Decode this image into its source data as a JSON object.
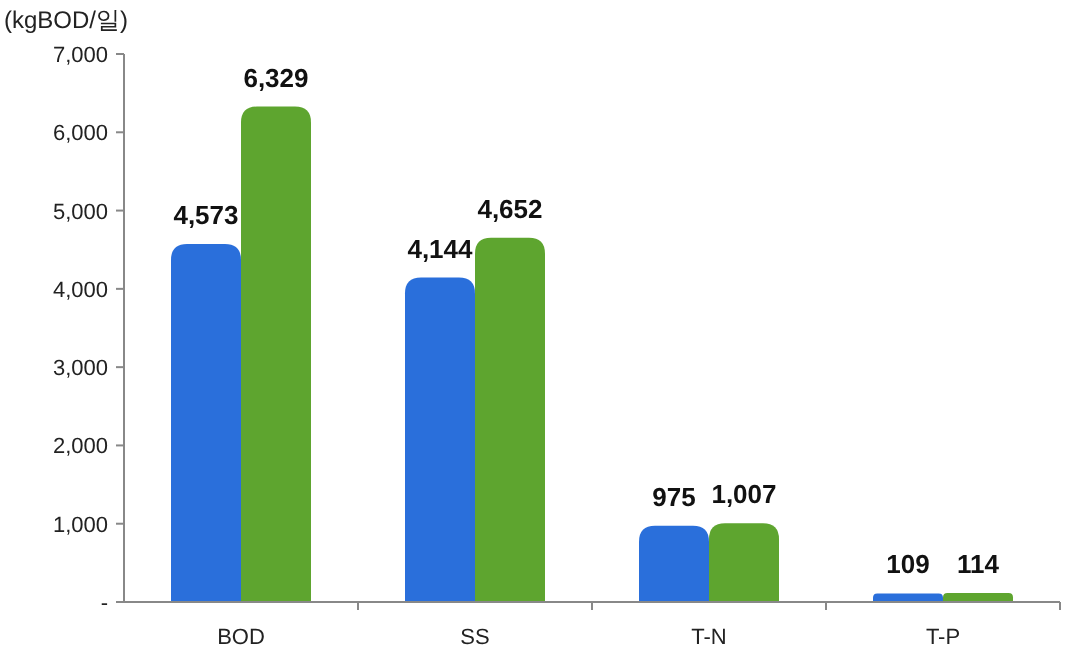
{
  "chart_data": {
    "type": "bar",
    "ylabel": "(kgBOD/일)",
    "categories": [
      "BOD",
      "SS",
      "T-N",
      "T-P"
    ],
    "series": [
      {
        "color": "#2a6fdb",
        "values": [
          4573,
          4144,
          975,
          109
        ],
        "value_labels": [
          "4,573",
          "4,144",
          "975",
          "109"
        ]
      },
      {
        "color": "#5ea52f",
        "values": [
          6329,
          4652,
          1007,
          114
        ],
        "value_labels": [
          "6,329",
          "4,652",
          "1,007",
          "114"
        ]
      }
    ],
    "ylim": [
      0,
      7000
    ],
    "yticks": [
      {
        "value": 0,
        "label": "-"
      },
      {
        "value": 1000,
        "label": "1,000"
      },
      {
        "value": 2000,
        "label": "2,000"
      },
      {
        "value": 3000,
        "label": "3,000"
      },
      {
        "value": 4000,
        "label": "4,000"
      },
      {
        "value": 5000,
        "label": "5,000"
      },
      {
        "value": 6000,
        "label": "6,000"
      },
      {
        "value": 7000,
        "label": "7,000"
      }
    ],
    "grid": false
  }
}
